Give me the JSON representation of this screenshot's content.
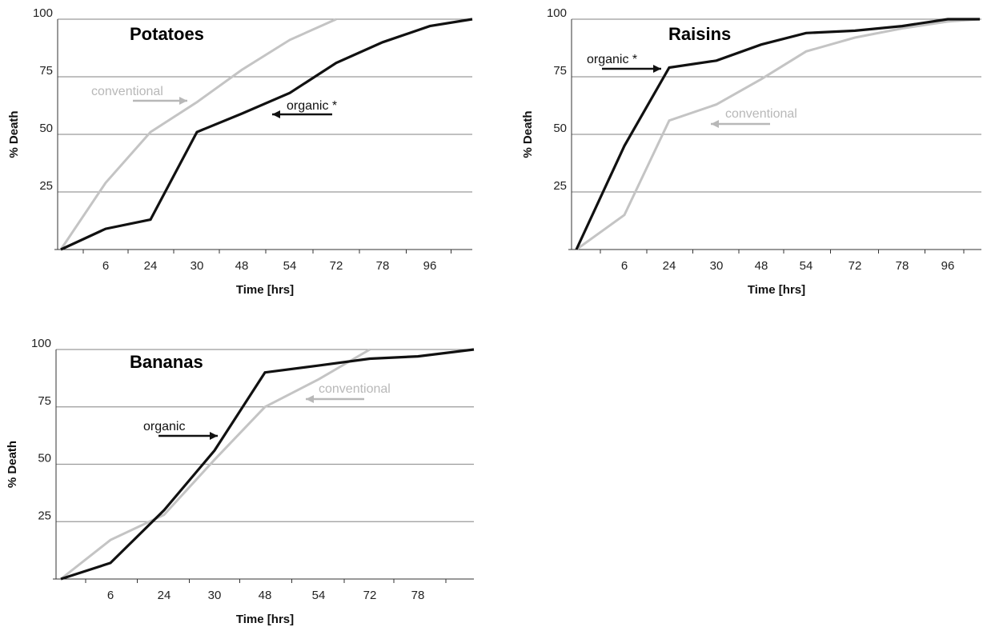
{
  "chart_data": [
    {
      "type": "line",
      "title": "Potatoes",
      "xlabel": "Time [hrs]",
      "ylabel": "% Death",
      "categories": [
        "",
        "6",
        "24",
        "30",
        "48",
        "54",
        "72",
        "78",
        "96",
        ""
      ],
      "yticks": [
        "25",
        "50",
        "75",
        "100"
      ],
      "ylim": [
        0,
        100
      ],
      "grid": true,
      "series": [
        {
          "name": "organic *",
          "color": "#111111",
          "values": [
            0,
            9,
            13,
            51,
            59,
            68,
            81,
            90,
            97,
            100
          ]
        },
        {
          "name": "conventional",
          "color": "#c4c4c4",
          "values": [
            0,
            29,
            51,
            64,
            78,
            91,
            100,
            null,
            null,
            null
          ]
        }
      ],
      "annotations": [
        {
          "text": "conventional",
          "series": 1,
          "arrow": "right"
        },
        {
          "text": "organic *",
          "series": 0,
          "arrow": "left"
        }
      ]
    },
    {
      "type": "line",
      "title": "Raisins",
      "xlabel": "Time [hrs]",
      "ylabel": "% Death",
      "categories": [
        "",
        "6",
        "24",
        "30",
        "48",
        "54",
        "72",
        "78",
        "96",
        ""
      ],
      "yticks": [
        "25",
        "50",
        "75",
        "100"
      ],
      "ylim": [
        0,
        100
      ],
      "grid": true,
      "series": [
        {
          "name": "organic *",
          "color": "#111111",
          "values": [
            0,
            45,
            79,
            82,
            89,
            94,
            95,
            97,
            100,
            100
          ]
        },
        {
          "name": "conventional",
          "color": "#c4c4c4",
          "values": [
            0,
            15,
            56,
            63,
            74,
            86,
            92,
            96,
            99,
            100
          ]
        }
      ],
      "annotations": [
        {
          "text": "organic *",
          "series": 0,
          "arrow": "right"
        },
        {
          "text": "conventional",
          "series": 1,
          "arrow": "left"
        }
      ]
    },
    {
      "type": "line",
      "title": "Bananas",
      "xlabel": "Time [hrs]",
      "ylabel": "% Death",
      "categories": [
        "",
        "6",
        "24",
        "30",
        "48",
        "54",
        "72",
        "78",
        ""
      ],
      "yticks": [
        "25",
        "50",
        "75",
        "100"
      ],
      "ylim": [
        0,
        100
      ],
      "grid": true,
      "series": [
        {
          "name": "organic",
          "color": "#111111",
          "values": [
            0,
            7,
            30,
            56,
            90,
            93,
            96,
            97,
            100
          ]
        },
        {
          "name": "conventional",
          "color": "#c4c4c4",
          "values": [
            0,
            17,
            28,
            52,
            75,
            87,
            100,
            null,
            null
          ]
        }
      ],
      "annotations": [
        {
          "text": "conventional",
          "series": 1,
          "arrow": "left"
        },
        {
          "text": "organic",
          "series": 0,
          "arrow": "right"
        }
      ]
    }
  ]
}
